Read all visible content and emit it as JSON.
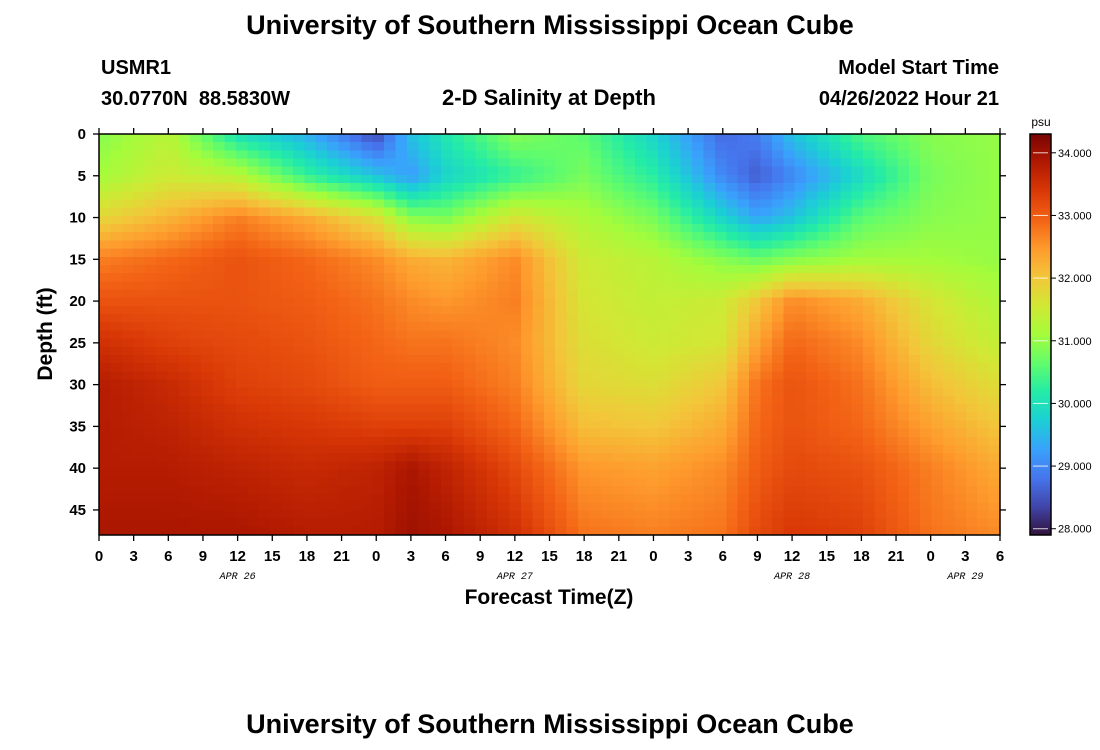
{
  "header": {
    "title": "University of Southern Mississippi Ocean Cube",
    "station_id": "USMR1",
    "station_coords": "30.0770N  88.5830W",
    "plot_title": "2-D Salinity at Depth",
    "model_start_label": "Model Start Time",
    "model_start_value": "04/26/2022 Hour 21"
  },
  "footer": {
    "title_repeat": "University of Southern Mississippi Ocean Cube"
  },
  "colors": {
    "background": "#ffffff",
    "axis": "#000000",
    "colormap": [
      "#30123b",
      "#4145ab",
      "#4675ed",
      "#39a2fc",
      "#1bcfd4",
      "#24eca6",
      "#61fc6c",
      "#a4fc3b",
      "#d1e834",
      "#f3c63a",
      "#fe9b2d",
      "#f36315",
      "#d93806",
      "#b11901",
      "#7a0402"
    ]
  },
  "chart_data": {
    "type": "heatmap",
    "title": "2-D Salinity at Depth",
    "xlabel": "Forecast Time(Z)",
    "ylabel": "Depth (ft)",
    "colorbar_unit": "psu",
    "x_unit": "hours from 04/26/2022 00Z",
    "xlim": [
      0,
      78
    ],
    "ylim": [
      0,
      48
    ],
    "y_inverted": true,
    "clim": [
      27.9,
      34.3
    ],
    "x_tick_labels": [
      "0",
      "3",
      "6",
      "9",
      "12",
      "15",
      "18",
      "21",
      "0",
      "3",
      "6",
      "9",
      "12",
      "15",
      "18",
      "21",
      "0",
      "3",
      "6",
      "9",
      "12",
      "15",
      "18",
      "21",
      "0",
      "3",
      "6"
    ],
    "date_labels": [
      {
        "label": "APR 26",
        "at_hour": 12
      },
      {
        "label": "APR 27",
        "at_hour": 36
      },
      {
        "label": "APR 28",
        "at_hour": 60
      },
      {
        "label": "APR 29",
        "at_hour": 75
      }
    ],
    "y_ticks": [
      0,
      5,
      10,
      15,
      20,
      25,
      30,
      35,
      40,
      45
    ],
    "colorbar_ticks": [
      "28.000",
      "29.000",
      "30.000",
      "31.000",
      "32.000",
      "33.000",
      "34.000"
    ],
    "colorbar_tick_values": [
      28,
      29,
      30,
      31,
      32,
      33,
      34
    ],
    "grid_times_hours": [
      0,
      6,
      12,
      18,
      24,
      27,
      30,
      36,
      42,
      48,
      54,
      57,
      60,
      66,
      72,
      78
    ],
    "grid_depths_ft": [
      0,
      5,
      10,
      15,
      20,
      25,
      30,
      35,
      40,
      48
    ],
    "salinity_psu": [
      [
        30.9,
        31.3,
        30.0,
        29.4,
        28.4,
        29.6,
        30.1,
        30.9,
        30.6,
        29.8,
        28.7,
        28.9,
        29.6,
        30.5,
        30.9,
        31.0
      ],
      [
        31.1,
        31.5,
        31.3,
        30.3,
        29.6,
        29.2,
        29.8,
        30.3,
        30.8,
        30.2,
        29.0,
        28.6,
        29.0,
        29.9,
        30.8,
        31.0
      ],
      [
        31.8,
        32.2,
        32.7,
        32.3,
        31.7,
        30.9,
        30.8,
        31.6,
        31.2,
        30.8,
        29.8,
        29.3,
        29.6,
        30.6,
        30.9,
        31.0
      ],
      [
        32.7,
        32.9,
        33.1,
        32.9,
        32.6,
        32.3,
        32.2,
        32.6,
        31.5,
        31.3,
        30.9,
        30.7,
        30.9,
        31.1,
        31.1,
        31.0
      ],
      [
        33.1,
        33.1,
        33.1,
        33.0,
        32.8,
        32.6,
        32.5,
        32.7,
        31.6,
        31.4,
        31.5,
        32.0,
        32.6,
        32.3,
        31.6,
        31.2
      ],
      [
        33.5,
        33.3,
        33.2,
        33.1,
        32.9,
        32.8,
        32.8,
        32.6,
        31.7,
        31.5,
        31.6,
        32.4,
        32.9,
        32.6,
        31.8,
        31.4
      ],
      [
        33.8,
        33.6,
        33.3,
        33.2,
        33.0,
        33.0,
        33.0,
        32.7,
        31.8,
        31.7,
        32.0,
        32.8,
        33.1,
        32.8,
        32.1,
        31.7
      ],
      [
        33.8,
        33.7,
        33.5,
        33.4,
        33.3,
        33.3,
        33.3,
        32.9,
        32.1,
        32.0,
        32.3,
        32.9,
        33.1,
        32.9,
        32.4,
        32.0
      ],
      [
        33.8,
        33.8,
        33.7,
        33.6,
        33.7,
        33.9,
        33.7,
        33.2,
        32.5,
        32.4,
        32.6,
        33.0,
        33.2,
        33.1,
        32.7,
        32.3
      ],
      [
        33.9,
        33.9,
        33.9,
        33.8,
        33.8,
        34.0,
        33.9,
        33.5,
        32.8,
        32.7,
        32.8,
        33.2,
        33.4,
        33.3,
        32.8,
        32.6
      ]
    ]
  }
}
